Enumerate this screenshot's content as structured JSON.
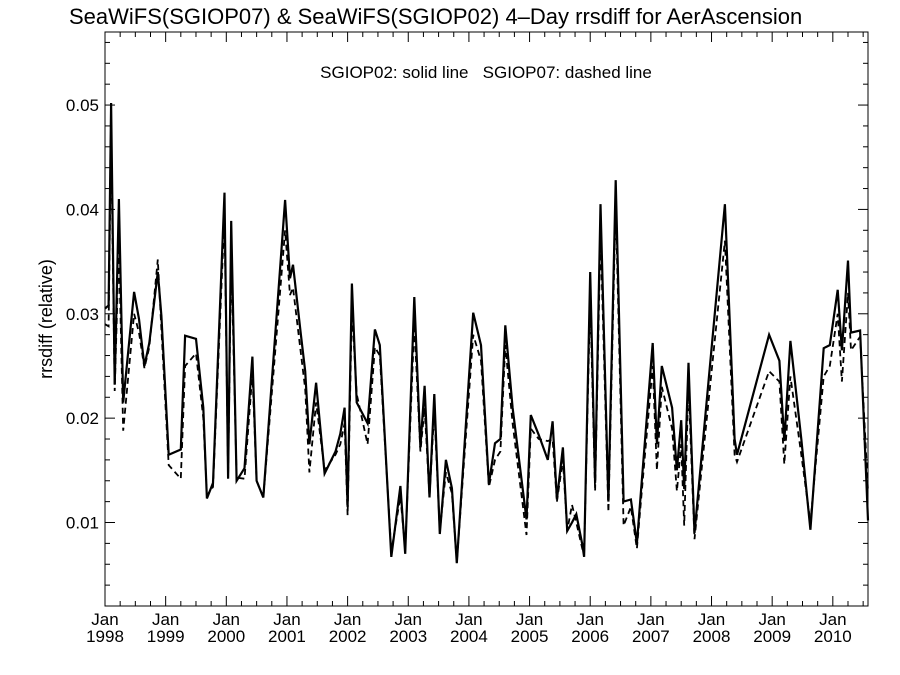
{
  "chart_data": {
    "type": "line",
    "title": "SeaWiFS(SGIOP07) & SeaWiFS(SGIOP02) 4–Day rrsdiff for AerAscension",
    "annotation": "SGIOP02: solid line   SGIOP07: dashed line",
    "ylabel": "rrsdiff (relative)",
    "xlabel": "",
    "xlim": [
      1998.0,
      2010.58
    ],
    "ylim": [
      0.002,
      0.057
    ],
    "grid": false,
    "legend": "none",
    "x_ticks": [
      {
        "value": 1998,
        "month": "Jan",
        "year": "1998"
      },
      {
        "value": 1999,
        "month": "Jan",
        "year": "1999"
      },
      {
        "value": 2000,
        "month": "Jan",
        "year": "2000"
      },
      {
        "value": 2001,
        "month": "Jan",
        "year": "2001"
      },
      {
        "value": 2002,
        "month": "Jan",
        "year": "2002"
      },
      {
        "value": 2003,
        "month": "Jan",
        "year": "2003"
      },
      {
        "value": 2004,
        "month": "Jan",
        "year": "2004"
      },
      {
        "value": 2005,
        "month": "Jan",
        "year": "2005"
      },
      {
        "value": 2006,
        "month": "Jan",
        "year": "2006"
      },
      {
        "value": 2007,
        "month": "Jan",
        "year": "2007"
      },
      {
        "value": 2008,
        "month": "Jan",
        "year": "2008"
      },
      {
        "value": 2009,
        "month": "Jan",
        "year": "2009"
      },
      {
        "value": 2010,
        "month": "Jan",
        "year": "2010"
      }
    ],
    "y_ticks": [
      {
        "value": 0.01,
        "label": "0.01"
      },
      {
        "value": 0.02,
        "label": "0.02"
      },
      {
        "value": 0.03,
        "label": "0.03"
      },
      {
        "value": 0.04,
        "label": "0.04"
      },
      {
        "value": 0.05,
        "label": "0.05"
      }
    ],
    "series": [
      {
        "name": "SGIOP02",
        "style": "solid",
        "color": "#000000",
        "points": [
          [
            1998.0,
            0.0305
          ],
          [
            1998.06,
            0.0308
          ],
          [
            1998.1,
            0.0502
          ],
          [
            1998.16,
            0.0232
          ],
          [
            1998.23,
            0.041
          ],
          [
            1998.3,
            0.0215
          ],
          [
            1998.48,
            0.0321
          ],
          [
            1998.56,
            0.0295
          ],
          [
            1998.65,
            0.025
          ],
          [
            1998.73,
            0.0272
          ],
          [
            1998.87,
            0.034
          ],
          [
            1998.93,
            0.0298
          ],
          [
            1999.05,
            0.0165
          ],
          [
            1999.25,
            0.017
          ],
          [
            1999.32,
            0.0279
          ],
          [
            1999.5,
            0.0276
          ],
          [
            1999.62,
            0.021
          ],
          [
            1999.68,
            0.0123
          ],
          [
            1999.78,
            0.0138
          ],
          [
            1999.97,
            0.0416
          ],
          [
            2000.03,
            0.0142
          ],
          [
            2000.08,
            0.0389
          ],
          [
            2000.17,
            0.014
          ],
          [
            2000.3,
            0.0152
          ],
          [
            2000.43,
            0.0259
          ],
          [
            2000.5,
            0.014
          ],
          [
            2000.61,
            0.0124
          ],
          [
            2000.97,
            0.0409
          ],
          [
            2001.05,
            0.0334
          ],
          [
            2001.1,
            0.0347
          ],
          [
            2001.23,
            0.028
          ],
          [
            2001.3,
            0.0245
          ],
          [
            2001.37,
            0.0175
          ],
          [
            2001.48,
            0.0234
          ],
          [
            2001.62,
            0.0147
          ],
          [
            2001.8,
            0.0168
          ],
          [
            2001.88,
            0.0185
          ],
          [
            2001.95,
            0.021
          ],
          [
            2002.0,
            0.0115
          ],
          [
            2002.07,
            0.0329
          ],
          [
            2002.15,
            0.0215
          ],
          [
            2002.33,
            0.0195
          ],
          [
            2002.45,
            0.0285
          ],
          [
            2002.53,
            0.027
          ],
          [
            2002.72,
            0.0067
          ],
          [
            2002.87,
            0.0135
          ],
          [
            2002.95,
            0.007
          ],
          [
            2003.1,
            0.0316
          ],
          [
            2003.2,
            0.0172
          ],
          [
            2003.27,
            0.0231
          ],
          [
            2003.35,
            0.0124
          ],
          [
            2003.43,
            0.0223
          ],
          [
            2003.52,
            0.0089
          ],
          [
            2003.62,
            0.016
          ],
          [
            2003.72,
            0.0133
          ],
          [
            2003.8,
            0.0061
          ],
          [
            2004.07,
            0.0301
          ],
          [
            2004.2,
            0.027
          ],
          [
            2004.33,
            0.0137
          ],
          [
            2004.43,
            0.0176
          ],
          [
            2004.52,
            0.018
          ],
          [
            2004.6,
            0.0289
          ],
          [
            2004.72,
            0.021
          ],
          [
            2004.95,
            0.0103
          ],
          [
            2005.02,
            0.0203
          ],
          [
            2005.15,
            0.0184
          ],
          [
            2005.3,
            0.016
          ],
          [
            2005.38,
            0.0197
          ],
          [
            2005.45,
            0.0122
          ],
          [
            2005.55,
            0.0172
          ],
          [
            2005.62,
            0.0092
          ],
          [
            2005.7,
            0.01
          ],
          [
            2005.77,
            0.0108
          ],
          [
            2005.87,
            0.0079
          ],
          [
            2005.9,
            0.0067
          ],
          [
            2006.0,
            0.034
          ],
          [
            2006.08,
            0.0138
          ],
          [
            2006.17,
            0.0405
          ],
          [
            2006.3,
            0.012
          ],
          [
            2006.42,
            0.0428
          ],
          [
            2006.55,
            0.012
          ],
          [
            2006.67,
            0.0122
          ],
          [
            2006.77,
            0.008
          ],
          [
            2006.85,
            0.014
          ],
          [
            2007.03,
            0.0272
          ],
          [
            2007.1,
            0.0175
          ],
          [
            2007.18,
            0.025
          ],
          [
            2007.35,
            0.021
          ],
          [
            2007.43,
            0.015
          ],
          [
            2007.5,
            0.0198
          ],
          [
            2007.55,
            0.0132
          ],
          [
            2007.62,
            0.0253
          ],
          [
            2007.72,
            0.009
          ],
          [
            2008.22,
            0.0405
          ],
          [
            2008.38,
            0.018
          ],
          [
            2008.42,
            0.0165
          ],
          [
            2008.95,
            0.028
          ],
          [
            2009.12,
            0.0255
          ],
          [
            2009.2,
            0.0178
          ],
          [
            2009.3,
            0.0274
          ],
          [
            2009.48,
            0.018
          ],
          [
            2009.63,
            0.0093
          ],
          [
            2009.85,
            0.0267
          ],
          [
            2009.95,
            0.027
          ],
          [
            2010.08,
            0.0323
          ],
          [
            2010.15,
            0.0265
          ],
          [
            2010.25,
            0.0351
          ],
          [
            2010.3,
            0.0282
          ],
          [
            2010.45,
            0.0284
          ],
          [
            2010.58,
            0.0102
          ]
        ]
      },
      {
        "name": "SGIOP07",
        "style": "dashed",
        "color": "#000000",
        "points": [
          [
            1998.0,
            0.029
          ],
          [
            1998.06,
            0.0288
          ],
          [
            1998.1,
            0.0472
          ],
          [
            1998.16,
            0.0226
          ],
          [
            1998.23,
            0.0365
          ],
          [
            1998.3,
            0.0188
          ],
          [
            1998.48,
            0.03
          ],
          [
            1998.56,
            0.0282
          ],
          [
            1998.65,
            0.0248
          ],
          [
            1998.73,
            0.0268
          ],
          [
            1998.87,
            0.0352
          ],
          [
            1998.93,
            0.0285
          ],
          [
            1999.05,
            0.0155
          ],
          [
            1999.25,
            0.0142
          ],
          [
            1999.32,
            0.025
          ],
          [
            1999.5,
            0.0262
          ],
          [
            1999.62,
            0.02
          ],
          [
            1999.68,
            0.0126
          ],
          [
            1999.78,
            0.0134
          ],
          [
            1999.97,
            0.0395
          ],
          [
            2000.03,
            0.0144
          ],
          [
            2000.08,
            0.036
          ],
          [
            2000.17,
            0.0143
          ],
          [
            2000.3,
            0.0142
          ],
          [
            2000.43,
            0.0243
          ],
          [
            2000.5,
            0.014
          ],
          [
            2000.61,
            0.0124
          ],
          [
            2000.97,
            0.038
          ],
          [
            2001.05,
            0.0318
          ],
          [
            2001.1,
            0.0325
          ],
          [
            2001.23,
            0.0262
          ],
          [
            2001.3,
            0.0228
          ],
          [
            2001.37,
            0.0148
          ],
          [
            2001.48,
            0.0215
          ],
          [
            2001.62,
            0.015
          ],
          [
            2001.8,
            0.0165
          ],
          [
            2001.88,
            0.0175
          ],
          [
            2001.95,
            0.0195
          ],
          [
            2002.0,
            0.0107
          ],
          [
            2002.07,
            0.0305
          ],
          [
            2002.15,
            0.0223
          ],
          [
            2002.33,
            0.0175
          ],
          [
            2002.45,
            0.0268
          ],
          [
            2002.53,
            0.026
          ],
          [
            2002.72,
            0.0072
          ],
          [
            2002.87,
            0.0125
          ],
          [
            2002.95,
            0.0074
          ],
          [
            2003.1,
            0.029
          ],
          [
            2003.2,
            0.0168
          ],
          [
            2003.27,
            0.021
          ],
          [
            2003.35,
            0.0125
          ],
          [
            2003.43,
            0.0208
          ],
          [
            2003.52,
            0.0092
          ],
          [
            2003.62,
            0.0148
          ],
          [
            2003.72,
            0.0128
          ],
          [
            2003.8,
            0.0062
          ],
          [
            2004.07,
            0.028
          ],
          [
            2004.2,
            0.0255
          ],
          [
            2004.33,
            0.0134
          ],
          [
            2004.43,
            0.016
          ],
          [
            2004.52,
            0.0168
          ],
          [
            2004.6,
            0.027
          ],
          [
            2004.72,
            0.0195
          ],
          [
            2004.95,
            0.0088
          ],
          [
            2005.02,
            0.019
          ],
          [
            2005.15,
            0.018
          ],
          [
            2005.3,
            0.0178
          ],
          [
            2005.38,
            0.018
          ],
          [
            2005.45,
            0.012
          ],
          [
            2005.55,
            0.016
          ],
          [
            2005.62,
            0.0092
          ],
          [
            2005.7,
            0.0117
          ],
          [
            2005.77,
            0.01
          ],
          [
            2005.87,
            0.0075
          ],
          [
            2005.9,
            0.007
          ],
          [
            2006.0,
            0.0315
          ],
          [
            2006.08,
            0.013
          ],
          [
            2006.17,
            0.0378
          ],
          [
            2006.3,
            0.011
          ],
          [
            2006.42,
            0.0405
          ],
          [
            2006.55,
            0.0097
          ],
          [
            2006.67,
            0.0115
          ],
          [
            2006.77,
            0.0075
          ],
          [
            2006.85,
            0.013
          ],
          [
            2007.03,
            0.025
          ],
          [
            2007.1,
            0.015
          ],
          [
            2007.18,
            0.023
          ],
          [
            2007.35,
            0.019
          ],
          [
            2007.43,
            0.013
          ],
          [
            2007.5,
            0.0175
          ],
          [
            2007.55,
            0.0097
          ],
          [
            2007.62,
            0.0232
          ],
          [
            2007.72,
            0.0084
          ],
          [
            2008.22,
            0.037
          ],
          [
            2008.38,
            0.0165
          ],
          [
            2008.42,
            0.0158
          ],
          [
            2008.95,
            0.0245
          ],
          [
            2009.12,
            0.0235
          ],
          [
            2009.2,
            0.0156
          ],
          [
            2009.3,
            0.024
          ],
          [
            2009.48,
            0.0165
          ],
          [
            2009.63,
            0.01
          ],
          [
            2009.85,
            0.024
          ],
          [
            2009.95,
            0.025
          ],
          [
            2010.08,
            0.03
          ],
          [
            2010.15,
            0.0235
          ],
          [
            2010.25,
            0.032
          ],
          [
            2010.3,
            0.0265
          ],
          [
            2010.45,
            0.0278
          ],
          [
            2010.58,
            0.013
          ]
        ]
      }
    ]
  }
}
